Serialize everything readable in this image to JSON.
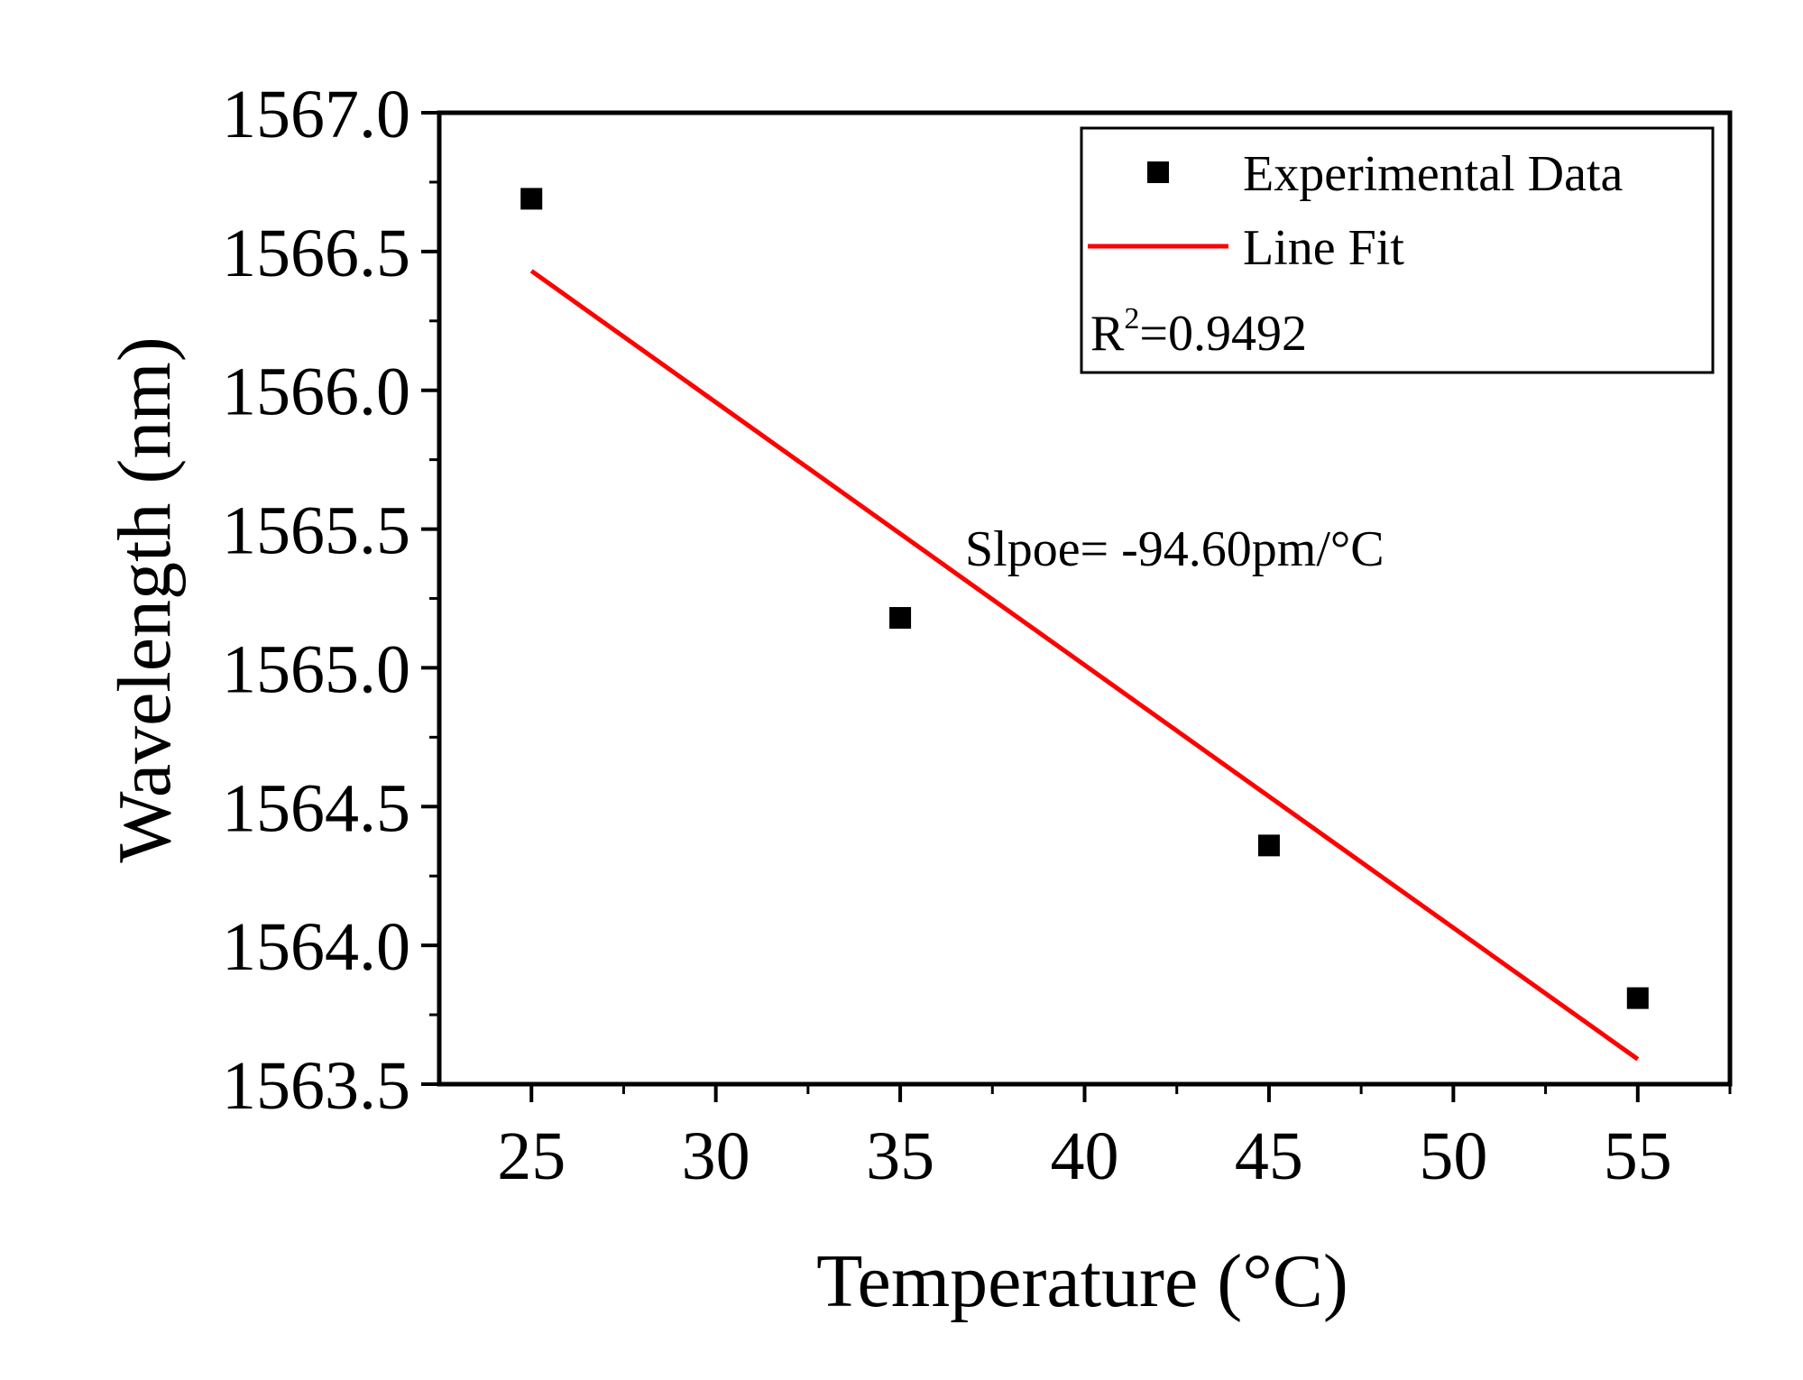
{
  "chart_data": {
    "type": "scatter",
    "xlabel": "Temperature (°C)",
    "ylabel": "Wavelength (nm)",
    "xlim": [
      22.5,
      57.5
    ],
    "ylim": [
      1563.5,
      1567.0
    ],
    "x_ticks": [
      25,
      30,
      35,
      40,
      45,
      50,
      55
    ],
    "x_tick_labels": [
      "25",
      "30",
      "35",
      "40",
      "45",
      "50",
      "55"
    ],
    "y_ticks": [
      1563.5,
      1564.0,
      1564.5,
      1565.0,
      1565.5,
      1566.0,
      1566.5,
      1567.0
    ],
    "y_tick_labels": [
      "1563.5",
      "1564.0",
      "1564.5",
      "1565.0",
      "1565.5",
      "1566.0",
      "1566.5",
      "1567.0"
    ],
    "grid": false,
    "legend_position": "top-right",
    "series": [
      {
        "name": "Experimental Data",
        "kind": "scatter",
        "marker": "square",
        "color": "#000000",
        "x": [
          25,
          35,
          45,
          55
        ],
        "y": [
          1566.69,
          1565.18,
          1564.36,
          1563.81
        ]
      },
      {
        "name": "Line Fit",
        "kind": "line",
        "color": "#ff0000",
        "x": [
          25,
          55
        ],
        "y": [
          1566.43,
          1563.59
        ]
      }
    ],
    "annotations": {
      "r2_label": "R",
      "r2_superscript": "2",
      "r2_value": "=0.9492",
      "slope_text": "Slpoe= -94.60pm/°C"
    }
  }
}
